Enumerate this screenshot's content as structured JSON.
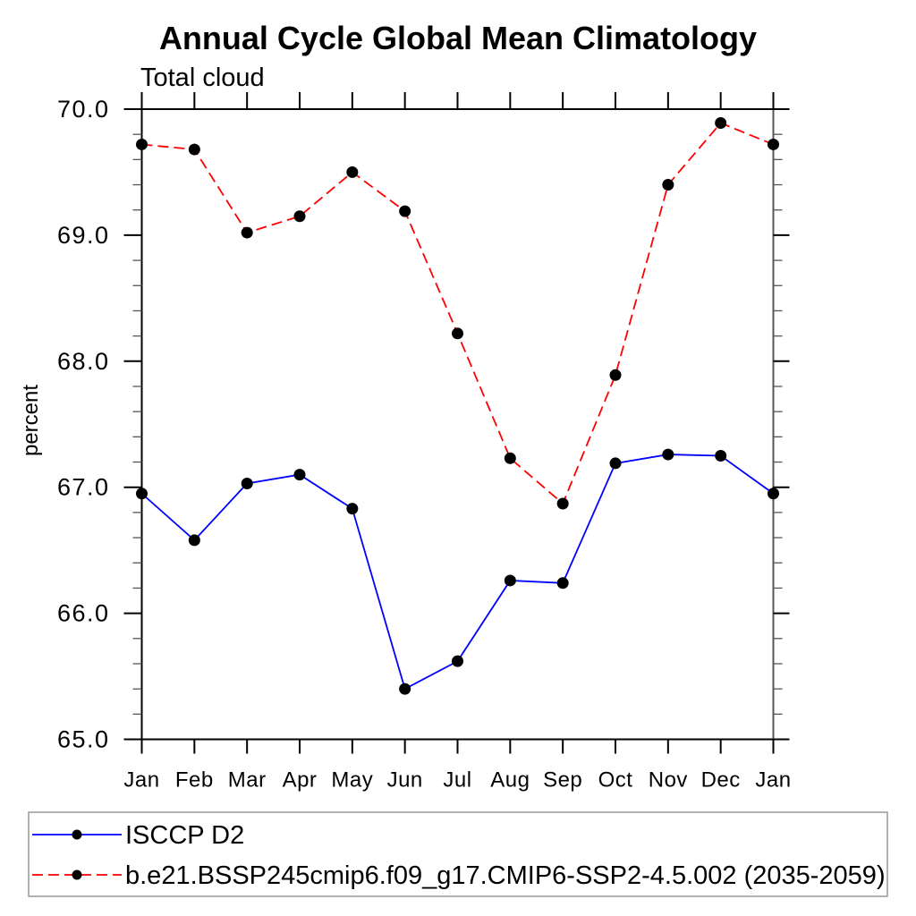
{
  "chart_data": {
    "type": "line",
    "title": "Annual Cycle Global Mean Climatology",
    "subtitle": "Total cloud",
    "ylabel": "percent",
    "xlabel": "",
    "categories": [
      "Jan",
      "Feb",
      "Mar",
      "Apr",
      "May",
      "Jun",
      "Jul",
      "Aug",
      "Sep",
      "Oct",
      "Nov",
      "Dec",
      "Jan"
    ],
    "ylim": [
      65.0,
      70.0
    ],
    "ytick_labels": [
      "70.0",
      "69.0",
      "68.0",
      "67.0",
      "66.0",
      "65.0"
    ],
    "ytick_minor_step": 0.2,
    "grid": false,
    "legend": {
      "position": "below-plot",
      "border": true
    },
    "series": [
      {
        "name": "ISCCP D2",
        "color": "#0000ff",
        "line_style": "solid",
        "marker": "circle",
        "marker_color": "#000000",
        "values": [
          66.95,
          66.58,
          67.03,
          67.1,
          66.83,
          65.4,
          65.62,
          66.26,
          66.24,
          67.19,
          67.26,
          67.25,
          66.95
        ]
      },
      {
        "name": "b.e21.BSSP245cmip6.f09_g17.CMIP6-SSP2-4.5.002 (2035-2059)",
        "color": "#ff0000",
        "line_style": "dashed",
        "marker": "circle",
        "marker_color": "#000000",
        "values": [
          69.72,
          69.68,
          69.02,
          69.15,
          69.5,
          69.19,
          68.22,
          67.23,
          66.87,
          67.89,
          69.4,
          69.89,
          69.72
        ]
      }
    ]
  }
}
